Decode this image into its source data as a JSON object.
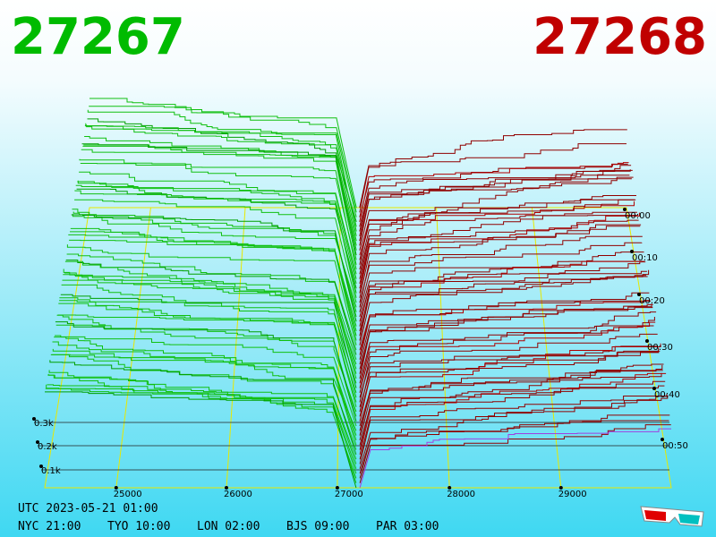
{
  "header": {
    "bid": "27267",
    "ask": "27268"
  },
  "price_axis": {
    "labels": [
      "25000",
      "26000",
      "27000",
      "28000",
      "29000"
    ]
  },
  "volume_axis": {
    "labels": [
      "0.1k",
      "0.2k",
      "0.3k"
    ]
  },
  "time_axis": {
    "labels": [
      "00:00",
      "00:10",
      "00:20",
      "00:30",
      "00:40",
      "00:50"
    ]
  },
  "footer": {
    "utc": "UTC 2023-05-21 01:00",
    "clocks": [
      "NYC 21:00",
      "TYO 10:00",
      "LON 02:00",
      "BJS 09:00",
      "PAR 03:00"
    ]
  }
}
